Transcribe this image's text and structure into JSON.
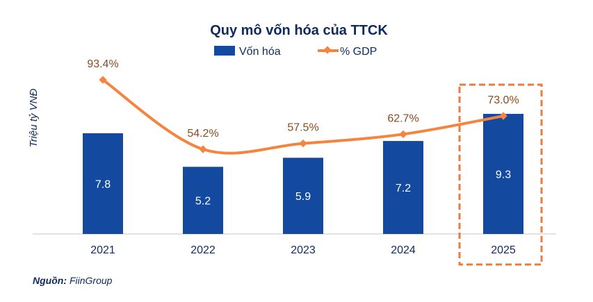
{
  "chart_data": {
    "type": "bar+line",
    "title": "Quy mô vốn hóa của TTCK",
    "ylabel": "Triệu tỷ VNĐ",
    "categories": [
      "2021",
      "2022",
      "2023",
      "2024",
      "2025"
    ],
    "series": [
      {
        "name": "Vốn hóa",
        "type": "bar",
        "values": [
          7.8,
          5.2,
          5.9,
          7.2,
          9.3
        ],
        "labels": [
          "7.8",
          "5.2",
          "5.9",
          "7.2",
          "9.3"
        ],
        "color": "#134a9f"
      },
      {
        "name": "% GDP",
        "type": "line",
        "values": [
          93.4,
          54.2,
          57.5,
          62.7,
          73.0
        ],
        "labels": [
          "93.4%",
          "54.2%",
          "57.5%",
          "62.7%",
          "73.0%"
        ],
        "color": "#f5843f"
      }
    ],
    "highlight": "2025",
    "highlight_color": "#ec7a3a",
    "legend": "top",
    "grid": false
  },
  "source_label": "Nguồn:",
  "source_value": "FiinGroup"
}
